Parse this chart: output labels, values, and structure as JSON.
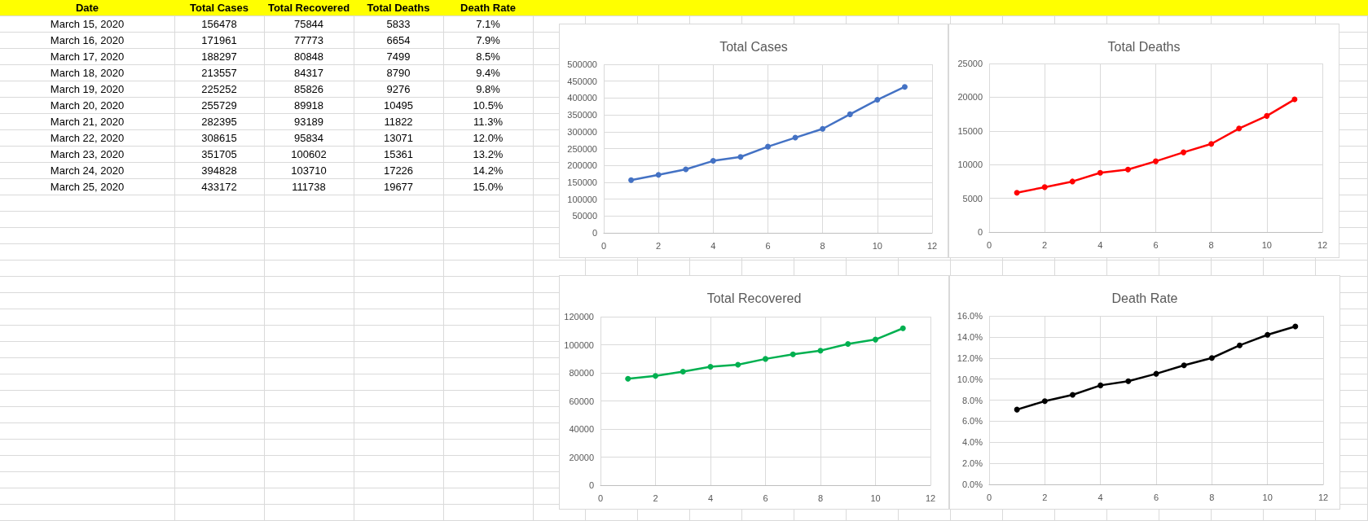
{
  "chart_data": [
    {
      "type": "other",
      "xlabel": "Date",
      "categories": [
        "March 15, 2020",
        "March 16, 2020",
        "March 17, 2020",
        "March 18, 2020",
        "March 19, 2020",
        "March 20, 2020",
        "March 21, 2020",
        "March 22, 2020",
        "March 23, 2020",
        "March 24, 2020",
        "March 25, 2020"
      ],
      "data_labels": true,
      "series": [
        {
          "name": "Total Cases",
          "values": [
            156478,
            171961,
            188297,
            213557,
            225252,
            255729,
            282395,
            308615,
            351705,
            394828,
            433172
          ]
        },
        {
          "name": "Total Recovered",
          "values": [
            75844,
            77773,
            80848,
            84317,
            85826,
            89918,
            93189,
            95834,
            100602,
            103710,
            111738
          ]
        },
        {
          "name": "Total Deaths",
          "values": [
            5833,
            6654,
            7499,
            8790,
            9276,
            10495,
            11822,
            13071,
            15361,
            17226,
            19677
          ]
        },
        {
          "name": "Death Rate",
          "values": [
            7.1,
            7.9,
            8.5,
            9.4,
            9.8,
            10.5,
            11.3,
            12.0,
            13.2,
            14.2,
            15.0
          ],
          "value_labels": [
            "7.1%",
            "7.9%",
            "8.5%",
            "9.4%",
            "9.8%",
            "10.5%",
            "11.3%",
            "12.0%",
            "13.2%",
            "14.2%",
            "15.0%"
          ]
        }
      ]
    },
    {
      "type": "line",
      "title": "Total Cases",
      "x": [
        1,
        2,
        3,
        4,
        5,
        6,
        7,
        8,
        9,
        10,
        11
      ],
      "values": [
        156478,
        171961,
        188297,
        213557,
        225252,
        255729,
        282395,
        308615,
        351705,
        394828,
        433172
      ],
      "color": "#4472c4",
      "xlim": [
        0,
        12
      ],
      "xticks": [
        0,
        2,
        4,
        6,
        8,
        10,
        12
      ],
      "ylim": [
        0,
        500000
      ],
      "yticks": [
        0,
        50000,
        100000,
        150000,
        200000,
        250000,
        300000,
        350000,
        400000,
        450000,
        500000
      ],
      "grid": true,
      "marker": "circle",
      "line_style": "solid"
    },
    {
      "type": "line",
      "title": "Total Deaths",
      "x": [
        1,
        2,
        3,
        4,
        5,
        6,
        7,
        8,
        9,
        10,
        11
      ],
      "values": [
        5833,
        6654,
        7499,
        8790,
        9276,
        10495,
        11822,
        13071,
        15361,
        17226,
        19677
      ],
      "color": "#ff0000",
      "xlim": [
        0,
        12
      ],
      "xticks": [
        0,
        2,
        4,
        6,
        8,
        10,
        12
      ],
      "ylim": [
        0,
        25000
      ],
      "yticks": [
        0,
        5000,
        10000,
        15000,
        20000,
        25000
      ],
      "grid": true,
      "marker": "circle",
      "line_style": "solid"
    },
    {
      "type": "line",
      "title": "Total Recovered",
      "x": [
        1,
        2,
        3,
        4,
        5,
        6,
        7,
        8,
        9,
        10,
        11
      ],
      "values": [
        75844,
        77773,
        80848,
        84317,
        85826,
        89918,
        93189,
        95834,
        100602,
        103710,
        111738
      ],
      "color": "#00b050",
      "xlim": [
        0,
        12
      ],
      "xticks": [
        0,
        2,
        4,
        6,
        8,
        10,
        12
      ],
      "ylim": [
        0,
        120000
      ],
      "yticks": [
        0,
        20000,
        40000,
        60000,
        80000,
        100000,
        120000
      ],
      "grid": true,
      "marker": "circle",
      "line_style": "solid"
    },
    {
      "type": "line",
      "title": "Death Rate",
      "x": [
        1,
        2,
        3,
        4,
        5,
        6,
        7,
        8,
        9,
        10,
        11
      ],
      "values": [
        7.1,
        7.9,
        8.5,
        9.4,
        9.8,
        10.5,
        11.3,
        12.0,
        13.2,
        14.2,
        15.0
      ],
      "color": "#000000",
      "xlim": [
        0,
        12
      ],
      "xticks": [
        0,
        2,
        4,
        6,
        8,
        10,
        12
      ],
      "ylim": [
        0,
        16
      ],
      "yticks": [
        {
          "value": 0,
          "label": "0.0%"
        },
        {
          "value": 2,
          "label": "2.0%"
        },
        {
          "value": 4,
          "label": "4.0%"
        },
        {
          "value": 6,
          "label": "6.0%"
        },
        {
          "value": 8,
          "label": "8.0%"
        },
        {
          "value": 10,
          "label": "10.0%"
        },
        {
          "value": 12,
          "label": "12.0%"
        },
        {
          "value": 14,
          "label": "14.0%"
        },
        {
          "value": 16,
          "label": "16.0%"
        }
      ],
      "grid": true,
      "marker": "circle",
      "line_style": "solid"
    }
  ]
}
